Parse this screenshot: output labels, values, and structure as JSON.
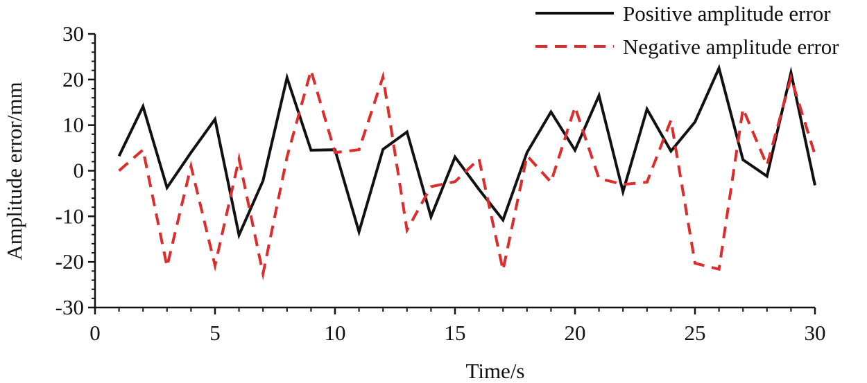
{
  "chart_data": {
    "type": "line",
    "title": "",
    "xlabel": "Time/s",
    "ylabel": "Amplitude error/mm",
    "xlim": [
      0,
      30
    ],
    "ylim": [
      -30,
      30
    ],
    "xticks": [
      0,
      5,
      10,
      15,
      20,
      25,
      30
    ],
    "yticks": [
      -30,
      -20,
      -10,
      0,
      10,
      20,
      30
    ],
    "grid": false,
    "legend_position": "top-right",
    "x": [
      1,
      2,
      3,
      4,
      5,
      6,
      7,
      8,
      9,
      10,
      11,
      12,
      13,
      14,
      15,
      16,
      17,
      18,
      19,
      20,
      21,
      22,
      23,
      24,
      25,
      26,
      27,
      28,
      29,
      30
    ],
    "series": [
      {
        "name": "Positive amplitude error",
        "color": "#111111",
        "dash": "solid",
        "values": [
          3.2,
          14.1,
          -3.7,
          4.0,
          11.3,
          -14.1,
          -2.2,
          20.4,
          4.5,
          4.6,
          -13.4,
          4.7,
          8.5,
          -10.1,
          3.0,
          -4.1,
          -10.8,
          4.0,
          12.9,
          4.5,
          16.5,
          -4.6,
          13.5,
          4.3,
          10.7,
          22.5,
          2.4,
          -1.2,
          21.5,
          -3.2
        ]
      },
      {
        "name": "Negative amplitude error",
        "color": "#dd2c2c",
        "dash": "dashed",
        "values": [
          0.0,
          4.6,
          -21.0,
          1.0,
          -20.8,
          2.6,
          -22.6,
          3.0,
          22.0,
          4.0,
          4.6,
          20.6,
          -13.0,
          -3.5,
          -2.4,
          2.6,
          -21.8,
          3.3,
          -2.5,
          14.0,
          -1.7,
          -3.0,
          -2.5,
          11.1,
          -20.3,
          -21.6,
          13.6,
          1.2,
          20.4,
          3.5
        ]
      }
    ]
  }
}
